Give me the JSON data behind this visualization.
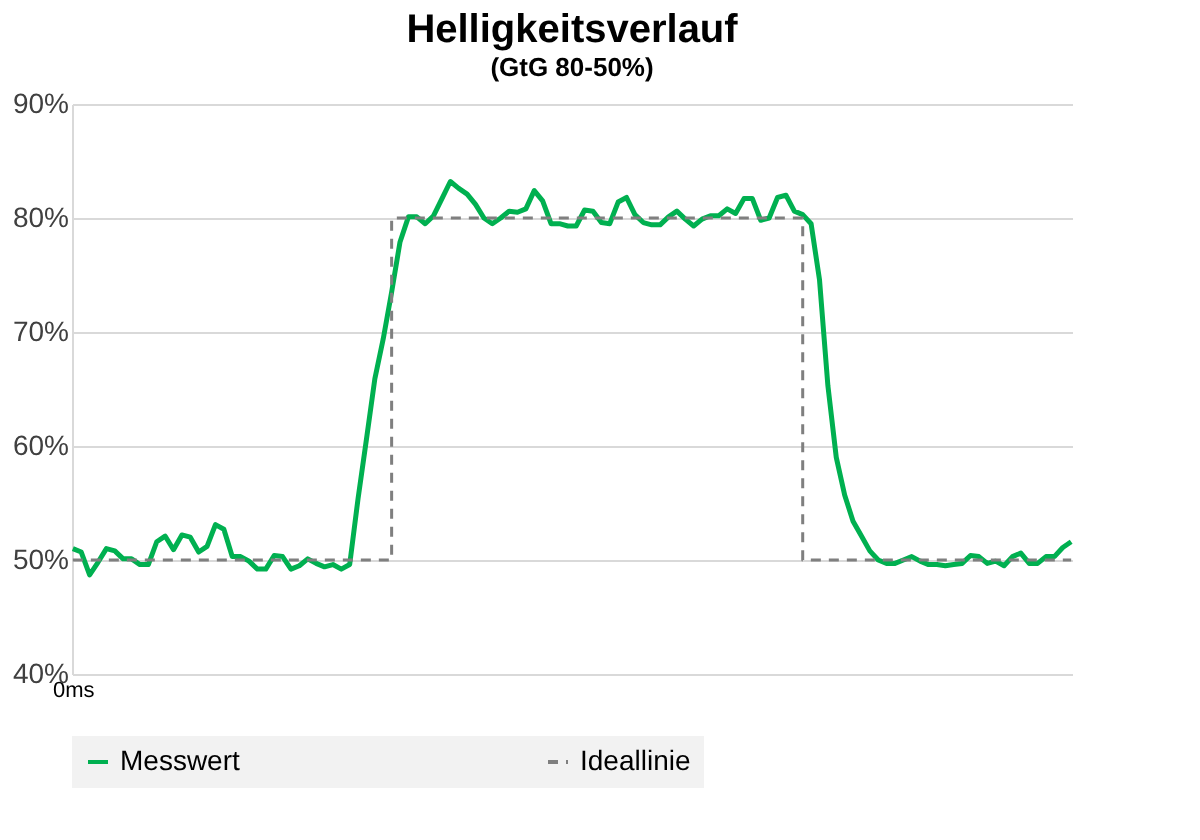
{
  "chart_data": {
    "type": "line",
    "title": "Helligkeitsverlauf",
    "subtitle": "(GtG 80-50%)",
    "categories": [
      "0ms",
      null,
      null,
      null,
      null,
      null,
      null,
      null,
      null,
      null,
      null,
      null,
      null,
      null,
      null,
      null,
      null,
      null,
      null,
      null,
      null,
      null,
      null,
      null,
      null,
      null,
      null,
      null,
      null,
      null,
      null,
      null,
      null,
      null,
      null,
      null,
      null,
      null,
      null,
      null,
      null,
      null,
      null,
      null,
      null,
      null,
      null,
      null,
      null,
      null,
      null,
      null,
      null,
      null,
      null,
      null,
      null,
      null,
      null,
      null,
      null,
      null,
      null,
      null,
      null,
      null,
      null,
      null,
      null,
      null,
      null,
      null,
      null,
      null,
      null,
      null,
      null,
      null,
      null,
      null,
      null,
      null,
      null,
      null,
      null,
      null,
      null,
      null,
      null,
      null,
      null,
      null,
      null,
      null,
      null,
      null,
      null,
      null,
      null,
      null,
      null,
      null,
      null,
      null,
      null,
      null,
      null,
      null,
      null,
      null,
      null,
      null,
      null,
      null,
      null,
      null,
      null,
      null,
      null,
      null
    ],
    "series": [
      {
        "name": "Messwert",
        "color": "#00b050",
        "line_style": "solid",
        "values": [
          51.0,
          50.7,
          48.7,
          49.8,
          51.0,
          50.8,
          50.1,
          50.1,
          49.6,
          49.6,
          51.6,
          52.1,
          50.9,
          52.2,
          52.0,
          50.7,
          51.2,
          53.1,
          52.7,
          50.3,
          50.3,
          49.9,
          49.2,
          49.2,
          50.4,
          50.3,
          49.2,
          49.5,
          50.1,
          49.7,
          49.4,
          49.6,
          49.2,
          49.6,
          55.4,
          60.6,
          65.9,
          69.4,
          73.5,
          77.9,
          80.1,
          80.1,
          79.5,
          80.2,
          81.7,
          83.2,
          82.6,
          82.1,
          81.2,
          80.0,
          79.5,
          80.0,
          80.6,
          80.5,
          80.8,
          82.4,
          81.5,
          79.5,
          79.5,
          79.3,
          79.3,
          80.7,
          80.6,
          79.6,
          79.5,
          81.4,
          81.8,
          80.3,
          79.6,
          79.4,
          79.4,
          80.1,
          80.6,
          79.9,
          79.3,
          79.9,
          80.2,
          80.2,
          80.8,
          80.4,
          81.7,
          81.7,
          79.8,
          80.0,
          81.8,
          82.0,
          80.6,
          80.3,
          79.5,
          74.6,
          65.3,
          59.0,
          55.7,
          53.4,
          52.1,
          50.8,
          50.0,
          49.7,
          49.7,
          50.0,
          50.3,
          49.9,
          49.6,
          49.6,
          49.5,
          49.6,
          49.7,
          50.4,
          50.3,
          49.7,
          49.9,
          49.5,
          50.3,
          50.6,
          49.7,
          49.7,
          50.3,
          50.3,
          51.1,
          51.6
        ]
      },
      {
        "name": "Ideallinie",
        "type": "step",
        "color": "#7f7f7f",
        "line_style": "dashed",
        "values": [
          50,
          50,
          50,
          50,
          50,
          50,
          50,
          50,
          50,
          50,
          50,
          50,
          50,
          50,
          50,
          50,
          50,
          50,
          50,
          50,
          50,
          50,
          50,
          50,
          50,
          50,
          50,
          50,
          50,
          50,
          50,
          50,
          50,
          50,
          50,
          50,
          50,
          50,
          80,
          80,
          80,
          80,
          80,
          80,
          80,
          80,
          80,
          80,
          80,
          80,
          80,
          80,
          80,
          80,
          80,
          80,
          80,
          80,
          80,
          80,
          80,
          80,
          80,
          80,
          80,
          80,
          80,
          80,
          80,
          80,
          80,
          80,
          80,
          80,
          80,
          80,
          80,
          80,
          80,
          80,
          80,
          80,
          80,
          80,
          80,
          80,
          80,
          50,
          50,
          50,
          50,
          50,
          50,
          50,
          50,
          50,
          50,
          50,
          50,
          50,
          50,
          50,
          50,
          50,
          50,
          50,
          50,
          50,
          50,
          50,
          50,
          50,
          50,
          50,
          50,
          50,
          50,
          50,
          50,
          50
        ]
      }
    ],
    "ylim": [
      40,
      90
    ],
    "yticks": [
      {
        "value": 40,
        "label": "40%"
      },
      {
        "value": 50,
        "label": "50%"
      },
      {
        "value": 60,
        "label": "60%"
      },
      {
        "value": 70,
        "label": "70%"
      },
      {
        "value": 80,
        "label": "80%"
      },
      {
        "value": 90,
        "label": "90%"
      }
    ],
    "grid": "y",
    "legend": "bottom"
  }
}
